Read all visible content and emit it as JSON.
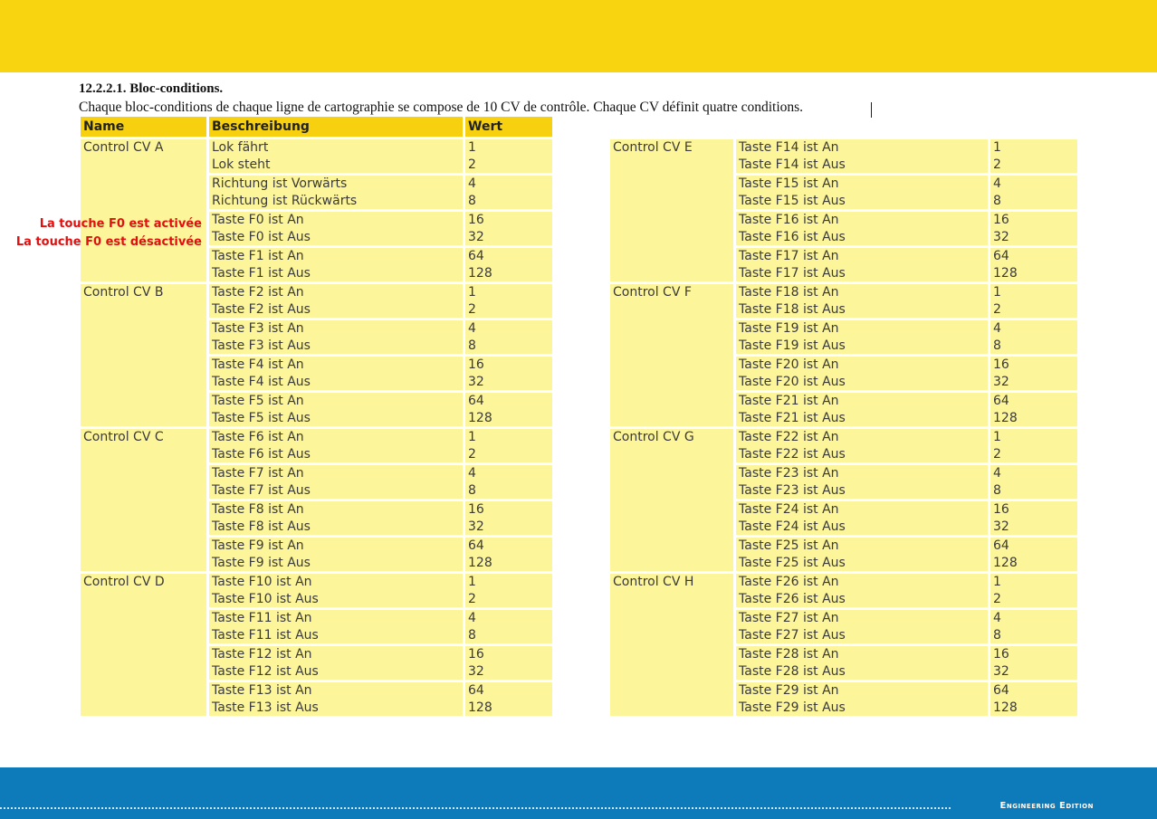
{
  "section": {
    "heading": "12.2.2.1. Bloc-conditions.",
    "intro": "Chaque bloc-conditions de chaque ligne de cartographie se compose de 10 CV de contrôle. Chaque CV définit quatre conditions."
  },
  "table_headers": {
    "name": "Name",
    "description": "Beschreibung",
    "value": "Wert"
  },
  "annotations": [
    "La touche F0 est activée",
    "La touche F0 est désactivée"
  ],
  "left_groups": [
    {
      "name": "Control CV A",
      "rows": [
        {
          "d1": "Lok fährt",
          "d2": "Lok steht",
          "v1": "1",
          "v2": "2"
        },
        {
          "d1": "Richtung ist Vorwärts",
          "d2": "Richtung ist Rückwärts",
          "v1": "4",
          "v2": "8"
        },
        {
          "d1": "Taste F0 ist An",
          "d2": "Taste F0 ist Aus",
          "v1": "16",
          "v2": "32"
        },
        {
          "d1": "Taste F1 ist An",
          "d2": "Taste F1 ist Aus",
          "v1": "64",
          "v2": "128"
        }
      ]
    },
    {
      "name": "Control CV B",
      "rows": [
        {
          "d1": "Taste F2 ist An",
          "d2": "Taste F2 ist Aus",
          "v1": "1",
          "v2": "2"
        },
        {
          "d1": "Taste F3 ist An",
          "d2": "Taste F3 ist Aus",
          "v1": "4",
          "v2": "8"
        },
        {
          "d1": "Taste F4 ist An",
          "d2": "Taste F4 ist Aus",
          "v1": "16",
          "v2": "32"
        },
        {
          "d1": "Taste F5 ist An",
          "d2": "Taste F5 ist Aus",
          "v1": "64",
          "v2": "128"
        }
      ]
    },
    {
      "name": "Control CV C",
      "rows": [
        {
          "d1": "Taste F6 ist An",
          "d2": "Taste F6 ist Aus",
          "v1": "1",
          "v2": "2"
        },
        {
          "d1": "Taste F7 ist An",
          "d2": "Taste F7 ist Aus",
          "v1": "4",
          "v2": "8"
        },
        {
          "d1": "Taste F8 ist An",
          "d2": "Taste F8 ist Aus",
          "v1": "16",
          "v2": "32"
        },
        {
          "d1": "Taste F9 ist An",
          "d2": "Taste F9 ist Aus",
          "v1": "64",
          "v2": "128"
        }
      ]
    },
    {
      "name": "Control CV D",
      "rows": [
        {
          "d1": "Taste F10 ist An",
          "d2": "Taste F10 ist Aus",
          "v1": "1",
          "v2": "2"
        },
        {
          "d1": "Taste F11 ist An",
          "d2": "Taste F11 ist Aus",
          "v1": "4",
          "v2": "8"
        },
        {
          "d1": "Taste F12 ist An",
          "d2": "Taste F12 ist Aus",
          "v1": "16",
          "v2": "32"
        },
        {
          "d1": "Taste F13 ist An",
          "d2": "Taste F13 ist Aus",
          "v1": "64",
          "v2": "128"
        }
      ]
    }
  ],
  "right_groups": [
    {
      "name": "Control CV E",
      "rows": [
        {
          "d1": "Taste F14 ist An",
          "d2": "Taste F14 ist Aus",
          "v1": "1",
          "v2": "2"
        },
        {
          "d1": "Taste F15 ist An",
          "d2": "Taste F15 ist Aus",
          "v1": "4",
          "v2": "8"
        },
        {
          "d1": "Taste F16 ist An",
          "d2": "Taste F16 ist Aus",
          "v1": "16",
          "v2": "32"
        },
        {
          "d1": "Taste F17 ist An",
          "d2": "Taste F17 ist Aus",
          "v1": "64",
          "v2": "128"
        }
      ]
    },
    {
      "name": "Control CV F",
      "rows": [
        {
          "d1": "Taste F18 ist An",
          "d2": "Taste F18 ist Aus",
          "v1": "1",
          "v2": "2"
        },
        {
          "d1": "Taste F19 ist An",
          "d2": "Taste F19 ist Aus",
          "v1": "4",
          "v2": "8"
        },
        {
          "d1": "Taste F20 ist An",
          "d2": "Taste F20 ist Aus",
          "v1": "16",
          "v2": "32"
        },
        {
          "d1": "Taste F21 ist An",
          "d2": "Taste F21 ist Aus",
          "v1": "64",
          "v2": "128"
        }
      ]
    },
    {
      "name": "Control CV G",
      "rows": [
        {
          "d1": "Taste F22 ist An",
          "d2": "Taste F22 ist Aus",
          "v1": "1",
          "v2": "2"
        },
        {
          "d1": "Taste F23 ist An",
          "d2": "Taste F23 ist Aus",
          "v1": "4",
          "v2": "8"
        },
        {
          "d1": "Taste F24 ist An",
          "d2": "Taste F24 ist Aus",
          "v1": "16",
          "v2": "32"
        },
        {
          "d1": "Taste F25 ist An",
          "d2": "Taste F25 ist Aus",
          "v1": "64",
          "v2": "128"
        }
      ]
    },
    {
      "name": "Control CV H",
      "rows": [
        {
          "d1": "Taste F26 ist An",
          "d2": "Taste F26 ist Aus",
          "v1": "1",
          "v2": "2"
        },
        {
          "d1": "Taste F27 ist An",
          "d2": "Taste F27 ist Aus",
          "v1": "4",
          "v2": "8"
        },
        {
          "d1": "Taste F28 ist An",
          "d2": "Taste F28 ist Aus",
          "v1": "16",
          "v2": "32"
        },
        {
          "d1": "Taste F29 ist An",
          "d2": "Taste F29 ist Aus",
          "v1": "64",
          "v2": "128"
        }
      ]
    }
  ],
  "footer": {
    "edition": "Engineering Edition"
  },
  "colors": {
    "top_band": "#f7d40f",
    "header_cell": "#f7d10f",
    "cell": "#fdf59a",
    "bottom_band": "#0d7ab9",
    "annotation": "#e01010"
  }
}
